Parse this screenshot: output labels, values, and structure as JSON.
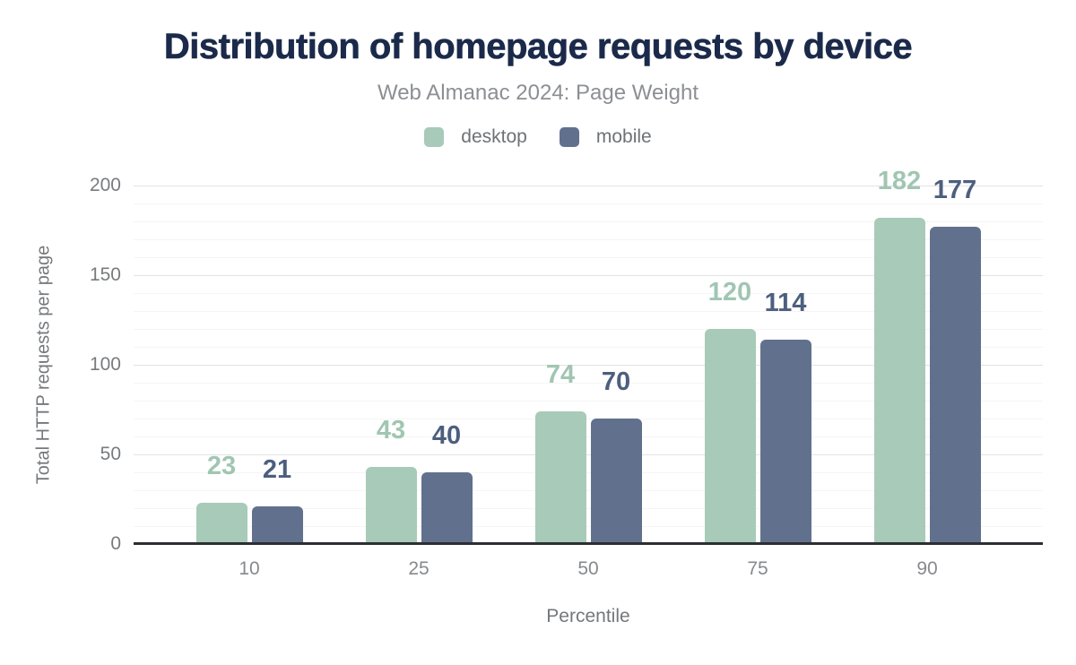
{
  "title": "Distribution of homepage requests by device",
  "subtitle": "Web Almanac 2024: Page Weight",
  "colors": {
    "background": "#ffffff",
    "title_text": "#1b2a4a",
    "subtitle_text": "#8c8f93",
    "axis_text": "#75787b",
    "baseline": "#2c2e33",
    "grid_major": "#e3e3e3",
    "grid_minor": "#f5f5f5",
    "series": {
      "desktop": "#a8cab9",
      "mobile": "#61718d"
    },
    "series_label": {
      "desktop": "#a0c6b2",
      "mobile": "#4d5f7f"
    }
  },
  "legend": {
    "items": [
      {
        "label": "desktop"
      },
      {
        "label": "mobile"
      }
    ]
  },
  "chart_data": {
    "type": "bar",
    "title": "Distribution of homepage requests by device",
    "subtitle": "Web Almanac 2024: Page Weight",
    "categories": [
      "10",
      "25",
      "50",
      "75",
      "90"
    ],
    "series": [
      {
        "name": "desktop",
        "values": [
          23,
          43,
          74,
          120,
          182
        ]
      },
      {
        "name": "mobile",
        "values": [
          21,
          40,
          70,
          114,
          177
        ]
      }
    ],
    "xlabel": "Percentile",
    "ylabel": "Total HTTP requests per page",
    "ylim": [
      0,
      200
    ],
    "yticks": [
      0,
      50,
      100,
      150,
      200
    ],
    "ytick_step": 50,
    "minor_grid_step": 10,
    "grid": true,
    "legend_position": "top",
    "data_labels": true
  }
}
